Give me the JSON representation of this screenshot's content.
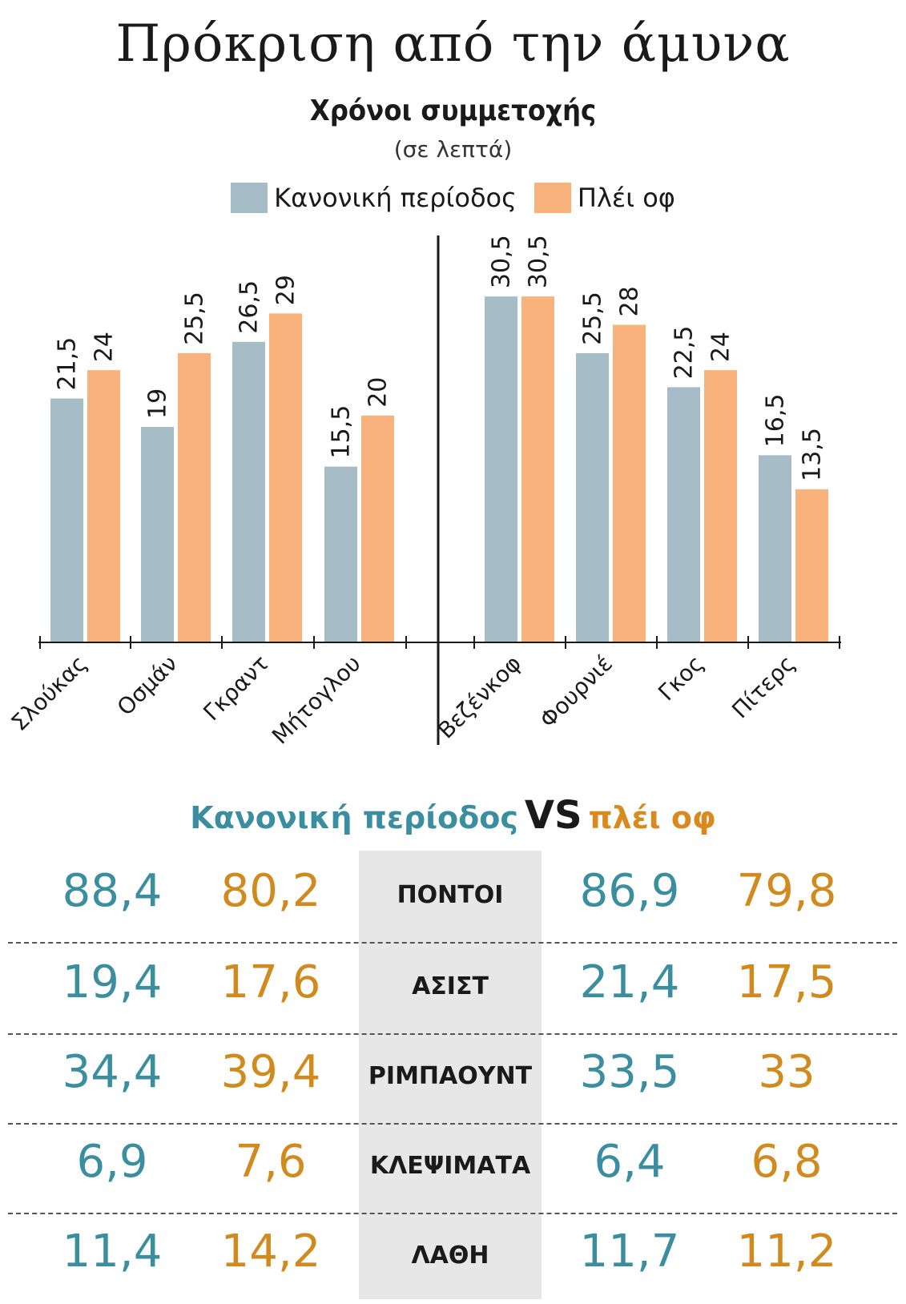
{
  "title": "Πρόκριση από την άμυνα",
  "subtitle": "Χρόνοι συμμετοχής",
  "unit": "(σε λεπτά)",
  "legend": {
    "regular": "Κανονική περίοδος",
    "playoffs": "Πλέι οφ"
  },
  "colors": {
    "regular": "#a6bcc7",
    "playoffs": "#f9b27b",
    "teal_text": "#3a8ea0",
    "orange_text": "#d08a1e",
    "stat_bg": "#e7e7e8"
  },
  "chart_data": {
    "type": "bar",
    "title": "Χρόνοι συμμετοχής",
    "ylabel": "(σε λεπτά)",
    "ylim": [
      0,
      30.5
    ],
    "categories": [
      "Σλούκας",
      "Οσμάν",
      "Γκραντ",
      "Μήτογλου",
      "Βεζένκοφ",
      "Φουρνιέ",
      "Γκος",
      "Πίτερς"
    ],
    "groups": [
      {
        "name": "left",
        "categories": [
          "Σλούκας",
          "Οσμάν",
          "Γκραντ",
          "Μήτογλου"
        ]
      },
      {
        "name": "right",
        "categories": [
          "Βεζένκοφ",
          "Φουρνιέ",
          "Γκος",
          "Πίτερς"
        ]
      }
    ],
    "series": [
      {
        "name": "Κανονική περίοδος",
        "values": [
          21.5,
          19,
          26.5,
          15.5,
          30.5,
          25.5,
          22.5,
          16.5
        ],
        "labels": [
          "21,5",
          "19",
          "26,5",
          "15,5",
          "30,5",
          "25,5",
          "22,5",
          "16,5"
        ]
      },
      {
        "name": "Πλέι οφ",
        "values": [
          24,
          25.5,
          29,
          20,
          30.5,
          28,
          24,
          13.5
        ],
        "labels": [
          "24",
          "25,5",
          "29",
          "20",
          "30,5",
          "28",
          "24",
          "13,5"
        ]
      }
    ]
  },
  "comparison": {
    "heading": {
      "regular": "Κανονική περίοδος",
      "vs": "VS",
      "playoffs": "πλέι οφ"
    },
    "rows": [
      {
        "label": "ΠΟΝΤΟΙ",
        "left_regular": "88,4",
        "left_playoffs": "80,2",
        "right_regular": "86,9",
        "right_playoffs": "79,8"
      },
      {
        "label": "ΑΣΙΣΤ",
        "left_regular": "19,4",
        "left_playoffs": "17,6",
        "right_regular": "21,4",
        "right_playoffs": "17,5"
      },
      {
        "label": "ΡΙΜΠΑΟΥΝΤ",
        "left_regular": "34,4",
        "left_playoffs": "39,4",
        "right_regular": "33,5",
        "right_playoffs": "33"
      },
      {
        "label": "ΚΛΕΨΙΜΑΤΑ",
        "left_regular": "6,9",
        "left_playoffs": "7,6",
        "right_regular": "6,4",
        "right_playoffs": "6,8"
      },
      {
        "label": "ΛΑΘΗ",
        "left_regular": "11,4",
        "left_playoffs": "14,2",
        "right_regular": "11,7",
        "right_playoffs": "11,2"
      }
    ]
  }
}
